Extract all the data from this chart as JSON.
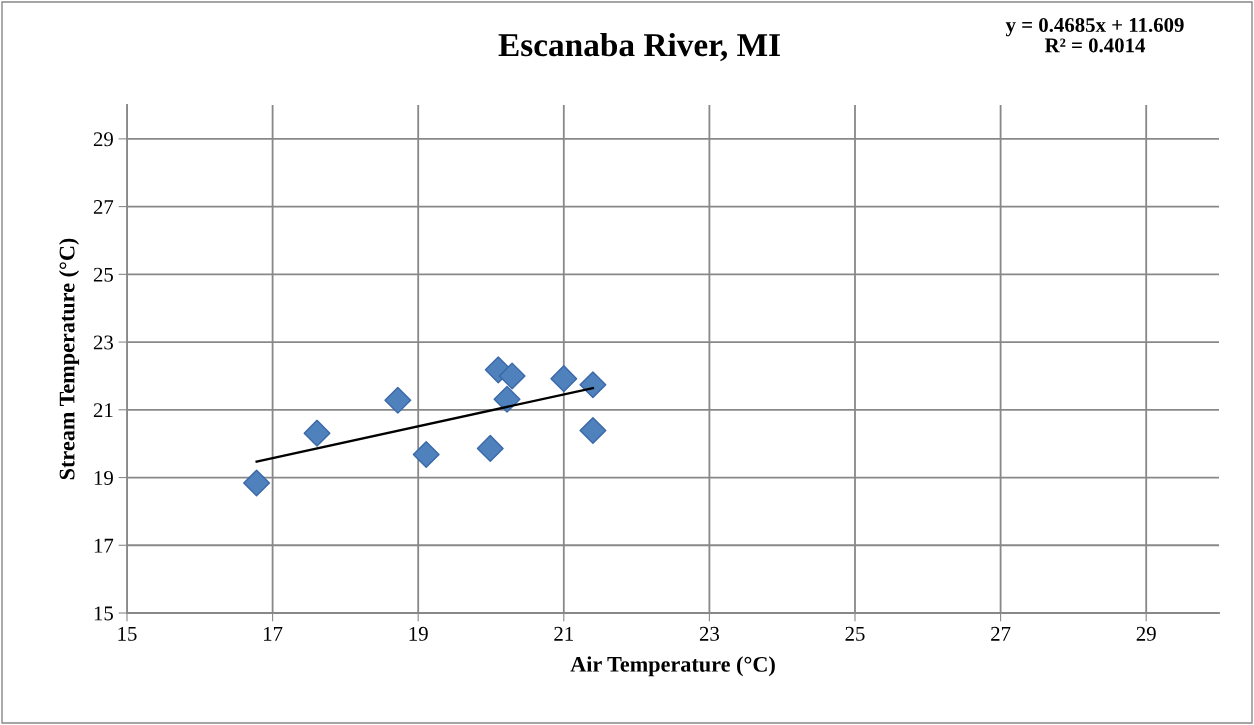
{
  "chart_data": {
    "type": "scatter",
    "title": "Escanaba River, MI",
    "xlabel": "Air Temperature (°C)",
    "ylabel": "Stream Temperature (°C)",
    "annotations": [
      "y = 0.4685x + 11.609\nR² = 0.4014"
    ],
    "series": [
      {
        "color": "#4f81bd",
        "marker": "diamond",
        "x": [
          16.78,
          17.61,
          18.72,
          19.11,
          19.99,
          20.1,
          20.29,
          20.22,
          21.0,
          21.4,
          21.4
        ],
        "values": [
          18.84,
          20.31,
          21.28,
          19.68,
          19.86,
          22.18,
          22.0,
          21.31,
          21.92,
          21.74,
          20.39
        ]
      },
      {
        "type": "line",
        "color": "#000000",
        "marker": "none",
        "line_style": "solid",
        "x": [
          16.78,
          21.4
        ],
        "values": [
          19.47,
          21.64
        ]
      }
    ],
    "xlim": [
      15,
      30
    ],
    "ylim": [
      15,
      30
    ],
    "xticks": [
      15,
      17,
      19,
      21,
      23,
      25,
      27,
      29
    ],
    "yticks": [
      15,
      17,
      19,
      21,
      23,
      25,
      27,
      29
    ],
    "grid": true
  }
}
